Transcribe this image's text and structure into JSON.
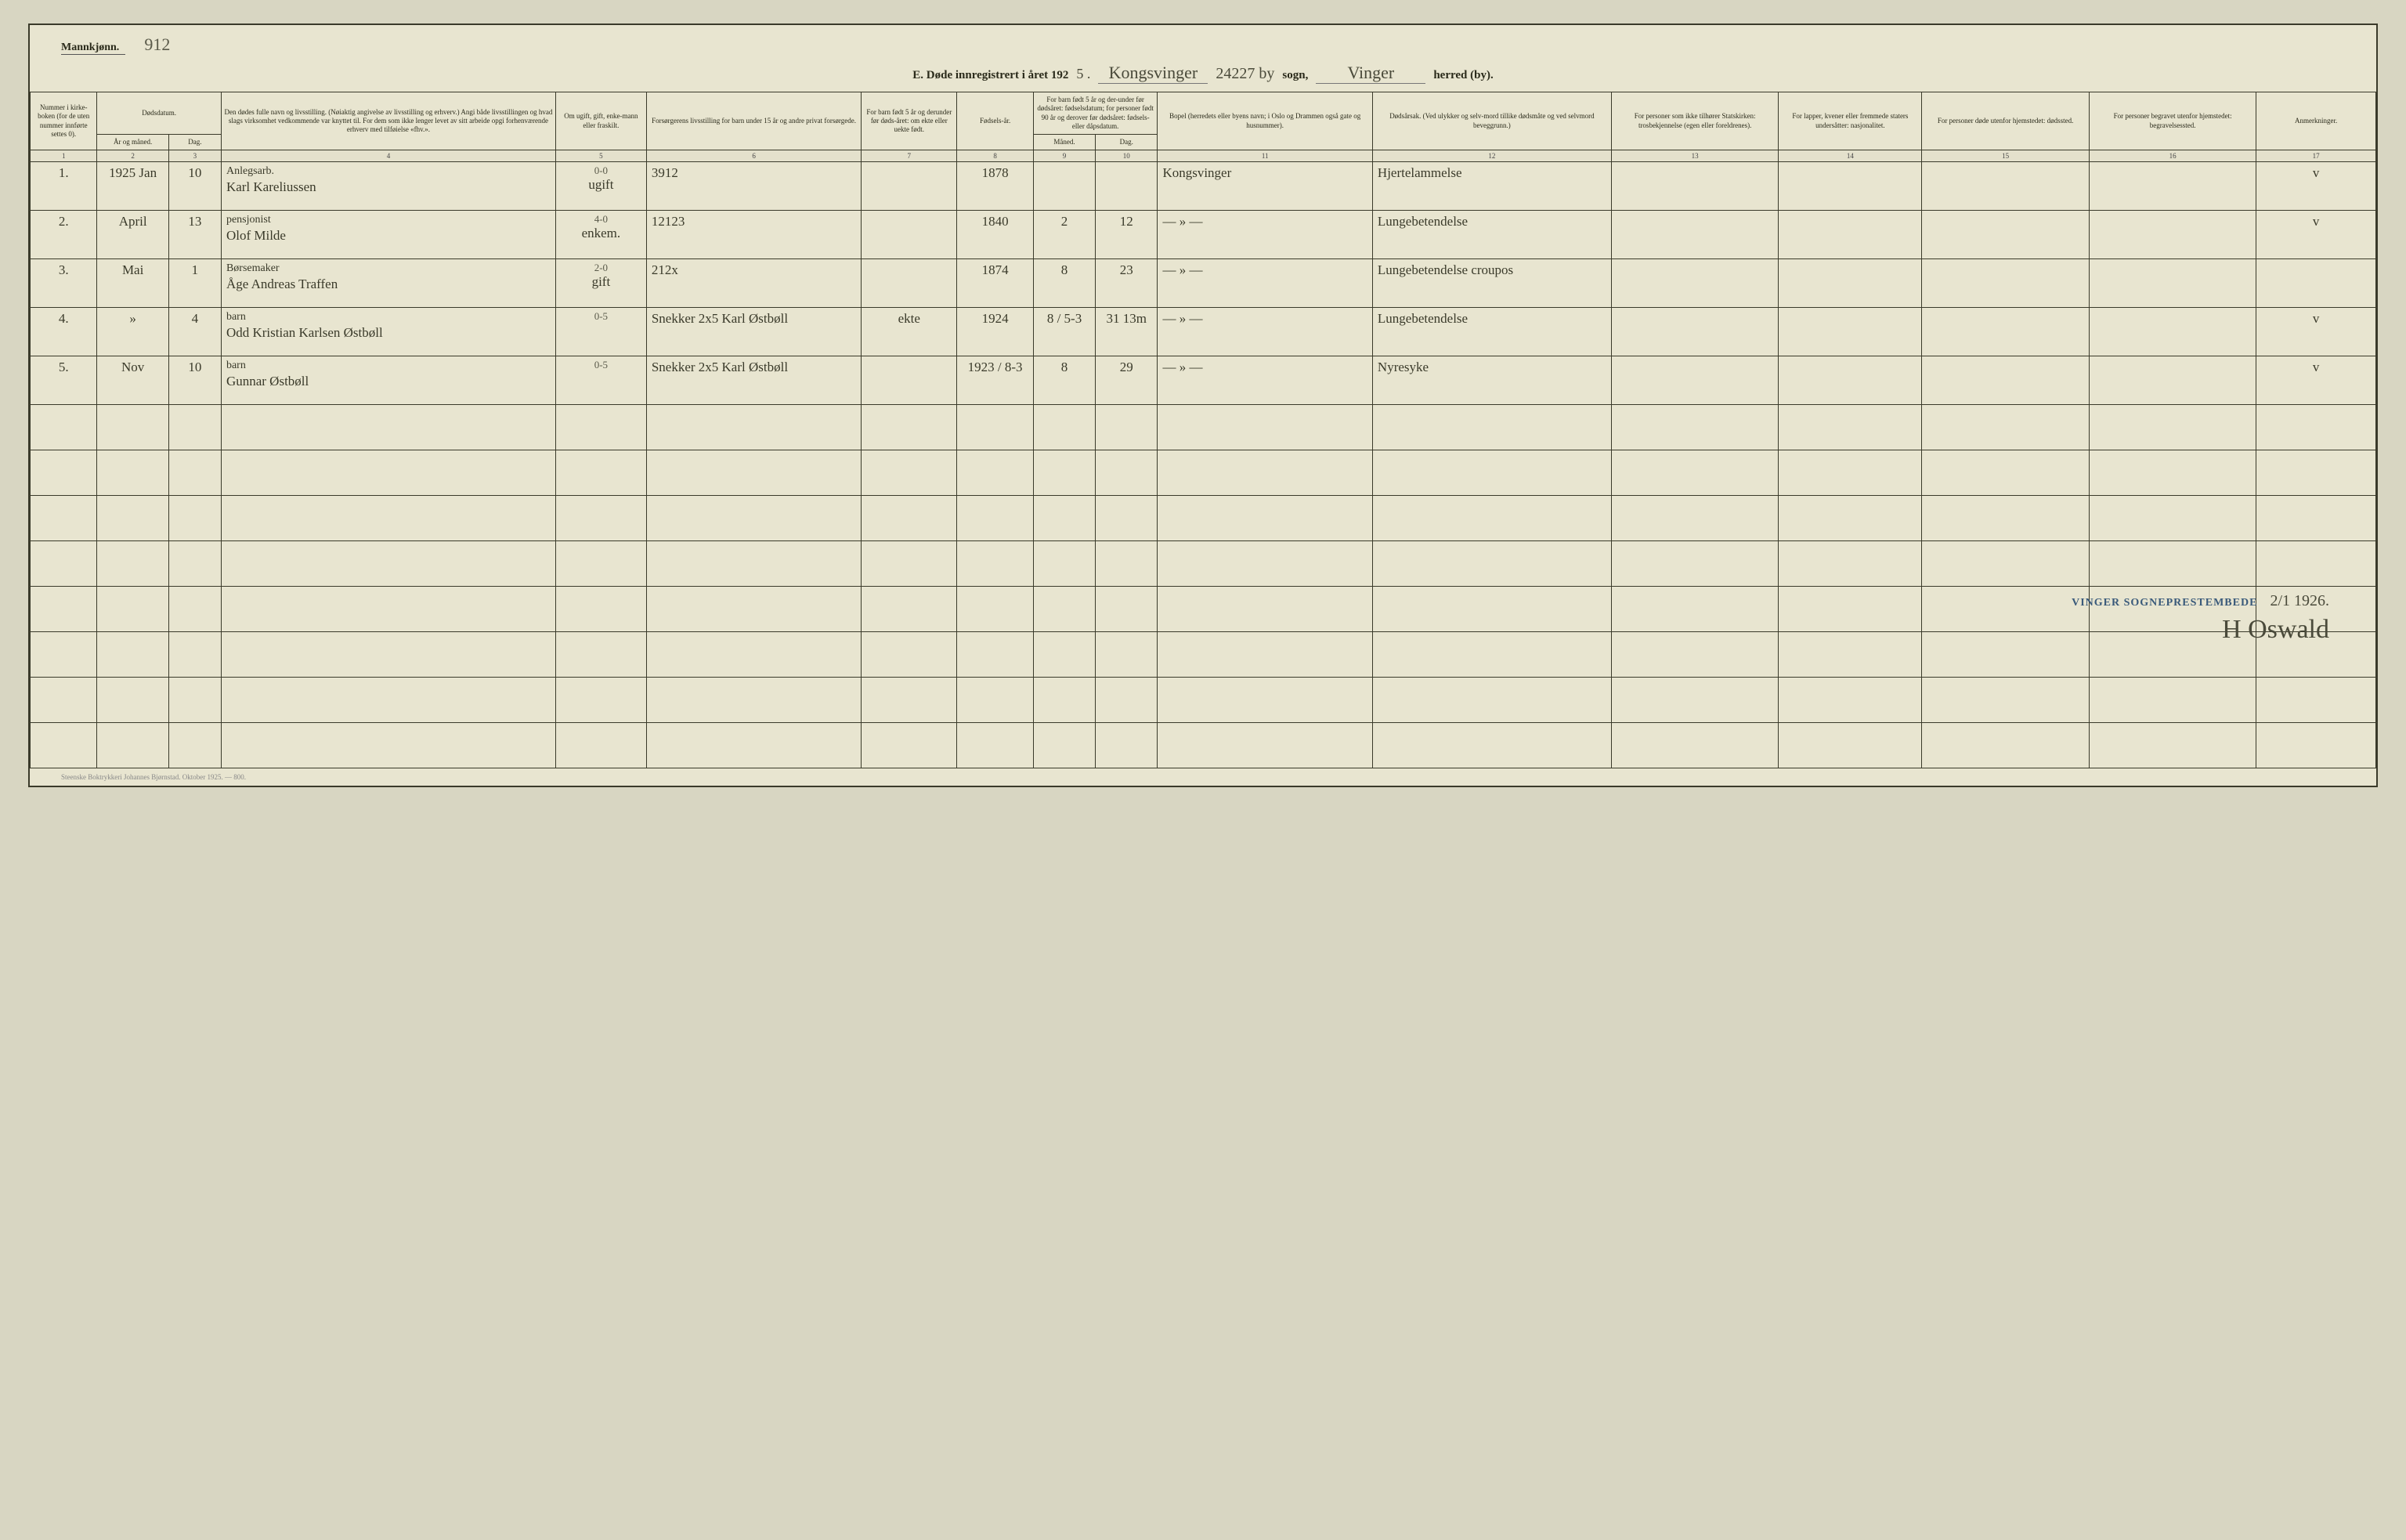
{
  "header": {
    "gender_label": "Mannkjønn.",
    "handwritten_top_left": "912",
    "title_prefix": "E.  Døde innregistrert i året 192",
    "title_year_suffix": "5 .",
    "parish_hand": "Kongsvinger",
    "top_number_hand": "24227 by",
    "sogn_label": "sogn,",
    "district_hand": "Vinger",
    "herred_label": "herred (by)."
  },
  "columns": {
    "col1": "Nummer i kirke-boken (for de uten nummer innførte settes 0).",
    "col2a": "Dødsdatum.",
    "col2b_year": "År og måned.",
    "col2b_day": "Dag.",
    "col4": "Den dødes fulle navn og livsstilling. (Nøiaktig angivelse av livsstilling og erhverv.) Angi både livsstillingen og hvad slags virksomhet vedkommende var knyttet til. For dem som ikke lenger levet av sitt arbeide opgi forhenværende erhverv med tilføielse «fhv.».",
    "col5": "Om ugift, gift, enke-mann eller fraskilt.",
    "col6": "Forsørgerens livsstilling for barn under 15 år og andre privat forsørgede.",
    "col7": "For barn født 5 år og derunder før døds-året: om ekte eller uekte født.",
    "col8": "Fødsels-år.",
    "col9_10": "For barn født 5 år og der-under før dødsåret: fødselsdatum; for personer født 90 år og derover før dødsåret: fødsels- eller dåpsdatum.",
    "col9": "Måned.",
    "col10": "Dag.",
    "col11": "Bopel (herredets eller byens navn; i Oslo og Drammen også gate og husnummer).",
    "col12": "Dødsårsak. (Ved ulykker og selv-mord tillike dødsmåte og ved selvmord beveggrunn.)",
    "col13": "For personer som ikke tilhører Statskirken: trosbekjennelse (egen eller foreldrenes).",
    "col14": "For lapper, kvener eller fremmede staters undersåtter: nasjonalitet.",
    "col15": "For personer døde utenfor hjemstedet: dødssted.",
    "col16": "For personer begravet utenfor hjemstedet: begravelsessted.",
    "col17": "Anmerkninger."
  },
  "colnums": [
    "1",
    "2",
    "3",
    "4",
    "5",
    "6",
    "7",
    "8",
    "9",
    "10",
    "11",
    "12",
    "13",
    "14",
    "15",
    "16",
    "17"
  ],
  "rows": [
    {
      "num": "1.",
      "year_month": "1925 Jan",
      "day": "10",
      "occupation": "Anlegsarb.",
      "name": "Karl Kareliussen",
      "code": "0-0",
      "marital": "ugift",
      "provider": "3912",
      "legit": "",
      "birth_year": "1878",
      "bmon": "",
      "bday": "",
      "residence": "Kongsvinger",
      "cause": "Hjertelammelse",
      "c13": "",
      "c14": "",
      "c15": "",
      "c16": "",
      "remark": "v"
    },
    {
      "num": "2.",
      "year_month": "April",
      "day": "13",
      "occupation": "pensjonist",
      "name": "Olof Milde",
      "code": "4-0",
      "marital": "enkem.",
      "provider": "12123",
      "legit": "",
      "birth_year": "1840",
      "bmon": "2",
      "bday": "12",
      "residence": "— » —",
      "cause": "Lungebetendelse",
      "c13": "",
      "c14": "",
      "c15": "",
      "c16": "",
      "remark": "v"
    },
    {
      "num": "3.",
      "year_month": "Mai",
      "day": "1",
      "occupation": "Børsemaker",
      "name": "Åge Andreas Traffen",
      "code": "2-0",
      "marital": "gift",
      "provider": "212x",
      "legit": "",
      "birth_year": "1874",
      "bmon": "8",
      "bday": "23",
      "residence": "— » —",
      "cause": "Lungebetendelse croupos",
      "c13": "",
      "c14": "",
      "c15": "",
      "c16": "",
      "remark": ""
    },
    {
      "num": "4.",
      "year_month": "»",
      "day": "4",
      "occupation": "barn",
      "name": "Odd Kristian Karlsen Østbøll",
      "code": "0-5",
      "marital": "",
      "provider": "Snekker 2x5 Karl Østbøll",
      "legit": "ekte",
      "birth_year": "1924",
      "bmon": "8 / 5-3",
      "bday": "31  13m",
      "residence": "— » —",
      "cause": "Lungebetendelse",
      "c13": "",
      "c14": "",
      "c15": "",
      "c16": "",
      "remark": "v"
    },
    {
      "num": "5.",
      "year_month": "Nov",
      "day": "10",
      "occupation": "barn",
      "name": "Gunnar Østbøll",
      "code": "0-5",
      "marital": "",
      "provider": "Snekker 2x5 Karl Østbøll",
      "legit": "",
      "birth_year": "1923 / 8-3",
      "bmon": "8",
      "bday": "29",
      "residence": "— » —",
      "cause": "Nyresyke",
      "c13": "",
      "c14": "",
      "c15": "",
      "c16": "",
      "remark": "v"
    }
  ],
  "empty_row_count": 8,
  "signature": {
    "stamp": "VINGER SOGNEPRESTEMBEDE",
    "date": "2/1  1926.",
    "name": "H Oswald"
  },
  "imprint": "Steenske Boktrykkeri Johannes Bjørnstad.  Oktober 1925. — 800.",
  "colors": {
    "paper": "#e8e5d0",
    "border": "#3a3a2a",
    "ink_print": "#2a2a1a",
    "ink_hand": "#4a4a3a",
    "stamp": "#3a5a7a"
  }
}
